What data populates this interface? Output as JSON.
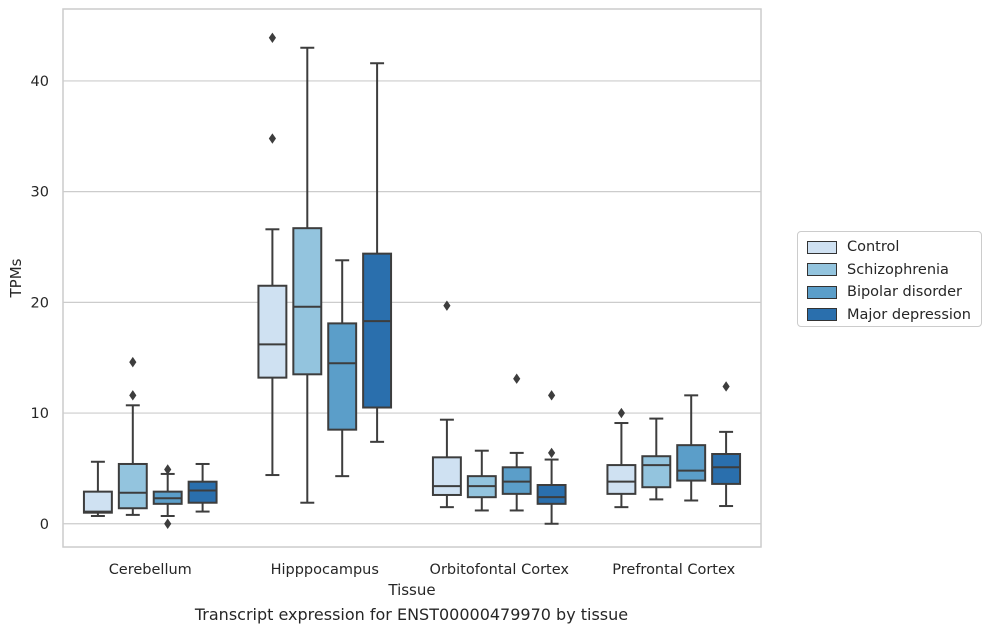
{
  "caption": "Transcript expression for ENST00000479970 by tissue",
  "chart_data": {
    "type": "boxplot",
    "title": "",
    "xlabel": "Tissue",
    "ylabel": "TPMs",
    "ylim": [
      -2.1,
      46.5
    ],
    "yticks": [
      0,
      10,
      20,
      30,
      40
    ],
    "grid": "horizontal",
    "legend_position": "right",
    "categories": [
      "Cerebellum",
      "Hipppocampus",
      "Orbitofontal Cortex",
      "Prefrontal Cortex"
    ],
    "series": [
      {
        "name": "Control",
        "color": "#cfe1f2",
        "boxes": [
          {
            "whislo": 0.7,
            "q1": 1.0,
            "med": 1.1,
            "q3": 2.9,
            "whishi": 5.6,
            "fliers": []
          },
          {
            "whislo": 4.4,
            "q1": 13.2,
            "med": 16.2,
            "q3": 21.5,
            "whishi": 26.6,
            "fliers": [
              34.8,
              43.9
            ]
          },
          {
            "whislo": 1.5,
            "q1": 2.6,
            "med": 3.4,
            "q3": 6.0,
            "whishi": 9.4,
            "fliers": [
              19.7
            ]
          },
          {
            "whislo": 1.5,
            "q1": 2.7,
            "med": 3.8,
            "q3": 5.3,
            "whishi": 9.1,
            "fliers": [
              10.0
            ]
          }
        ]
      },
      {
        "name": "Schizophrenia",
        "color": "#93c4de",
        "boxes": [
          {
            "whislo": 0.8,
            "q1": 1.4,
            "med": 2.8,
            "q3": 5.4,
            "whishi": 10.7,
            "fliers": [
              11.6,
              14.6
            ]
          },
          {
            "whislo": 1.9,
            "q1": 13.5,
            "med": 19.6,
            "q3": 26.7,
            "whishi": 43.0,
            "fliers": []
          },
          {
            "whislo": 1.2,
            "q1": 2.4,
            "med": 3.4,
            "q3": 4.3,
            "whishi": 6.6,
            "fliers": []
          },
          {
            "whislo": 2.2,
            "q1": 3.3,
            "med": 5.3,
            "q3": 6.1,
            "whishi": 9.5,
            "fliers": []
          }
        ]
      },
      {
        "name": "Bipolar disorder",
        "color": "#5b9ec9",
        "boxes": [
          {
            "whislo": 0.7,
            "q1": 1.8,
            "med": 2.3,
            "q3": 2.9,
            "whishi": 4.5,
            "fliers": [
              0.0,
              4.9
            ]
          },
          {
            "whislo": 4.3,
            "q1": 8.5,
            "med": 14.5,
            "q3": 18.1,
            "whishi": 23.8,
            "fliers": []
          },
          {
            "whislo": 1.2,
            "q1": 2.7,
            "med": 3.8,
            "q3": 5.1,
            "whishi": 6.4,
            "fliers": [
              13.1
            ]
          },
          {
            "whislo": 2.1,
            "q1": 3.9,
            "med": 4.8,
            "q3": 7.1,
            "whishi": 11.6,
            "fliers": []
          }
        ]
      },
      {
        "name": "Major depression",
        "color": "#2a6fad",
        "boxes": [
          {
            "whislo": 1.1,
            "q1": 1.9,
            "med": 3.0,
            "q3": 3.8,
            "whishi": 5.4,
            "fliers": []
          },
          {
            "whislo": 7.4,
            "q1": 10.5,
            "med": 18.3,
            "q3": 24.4,
            "whishi": 41.6,
            "fliers": []
          },
          {
            "whislo": 0.0,
            "q1": 1.8,
            "med": 2.4,
            "q3": 3.5,
            "whishi": 5.8,
            "fliers": [
              6.4,
              11.6
            ]
          },
          {
            "whislo": 1.6,
            "q1": 3.6,
            "med": 5.1,
            "q3": 6.3,
            "whishi": 8.3,
            "fliers": [
              12.4
            ]
          }
        ]
      }
    ]
  }
}
